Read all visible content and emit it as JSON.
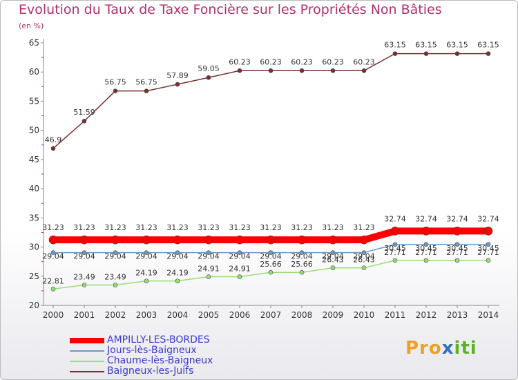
{
  "title": "Evolution du Taux de Taxe Foncière sur les Propriétés Non Bâties",
  "unit": "(en %)",
  "logo": {
    "p1": "Pro",
    "x": "x",
    "i": "iti",
    "full": "Proxiti"
  },
  "chart_data": {
    "type": "line",
    "title": "Evolution du Taux de Taxe Foncière sur les Propriétés Non Bâties",
    "ylabel": "(en %)",
    "xlabel": "",
    "ylim": [
      20,
      65
    ],
    "yticks": [
      20,
      25,
      30,
      35,
      40,
      45,
      50,
      55,
      60,
      65
    ],
    "grid": false,
    "legend_position": "bottom-left",
    "x": [
      "2000",
      "2001",
      "2002",
      "2003",
      "2004",
      "2005",
      "2006",
      "2007",
      "2008",
      "2009",
      "2010",
      "2011",
      "2012",
      "2013",
      "2014"
    ],
    "series": [
      {
        "name": "AMPILLY-LES-BORDES",
        "color": "#ff0000",
        "values": [
          31.23,
          31.23,
          31.23,
          31.23,
          31.23,
          31.23,
          31.23,
          31.23,
          31.23,
          31.23,
          31.23,
          32.74,
          32.74,
          32.74,
          32.74
        ],
        "labels": [
          "31.23",
          "31.23",
          "31.23",
          "31.23",
          "31.23",
          "31.23",
          "31.23",
          "31.23",
          "31.23",
          "31.23",
          "31.23",
          "32.74",
          "32.74",
          "32.74",
          "32.74"
        ]
      },
      {
        "name": "Jours-lès-Baigneux",
        "color": "#6a9cc8",
        "values": [
          29.04,
          29.04,
          29.04,
          29.04,
          29.04,
          29.04,
          29.04,
          29.04,
          29.04,
          29.04,
          29.04,
          30.45,
          30.45,
          30.45,
          30.45
        ],
        "labels": [
          "29.04",
          "29.04",
          "29.04",
          "29.04",
          "29.04",
          "29.04",
          "29.04",
          "29.04",
          "29.04",
          "29.04",
          "29.04",
          "30.45",
          "30.45",
          "30.45",
          "30.45"
        ]
      },
      {
        "name": "Chaume-lès-Baigneux",
        "color": "#99dd77",
        "values": [
          22.81,
          23.49,
          23.49,
          24.19,
          24.19,
          24.91,
          24.91,
          25.66,
          25.66,
          26.43,
          26.43,
          27.71,
          27.71,
          27.71,
          27.71
        ],
        "labels": [
          "22.81",
          "23.49",
          "23.49",
          "24.19",
          "24.19",
          "24.91",
          "24.91",
          "25.66",
          "25.66",
          "26.43",
          "26.43",
          "27.71",
          "27.71",
          "27.71",
          "27.71"
        ]
      },
      {
        "name": "Baigneux-les-Juifs",
        "color": "#7a3030",
        "values": [
          46.9,
          51.59,
          56.75,
          56.75,
          57.89,
          59.05,
          60.23,
          60.23,
          60.23,
          60.23,
          60.23,
          63.15,
          63.15,
          63.15,
          63.15
        ],
        "labels": [
          "46.9",
          "51.59",
          "56.75",
          "56.75",
          "57.89",
          "59.05",
          "60.23",
          "60.23",
          "60.23",
          "60.23",
          "60.23",
          "63.15",
          "63.15",
          "63.15",
          "63.15"
        ]
      }
    ]
  }
}
